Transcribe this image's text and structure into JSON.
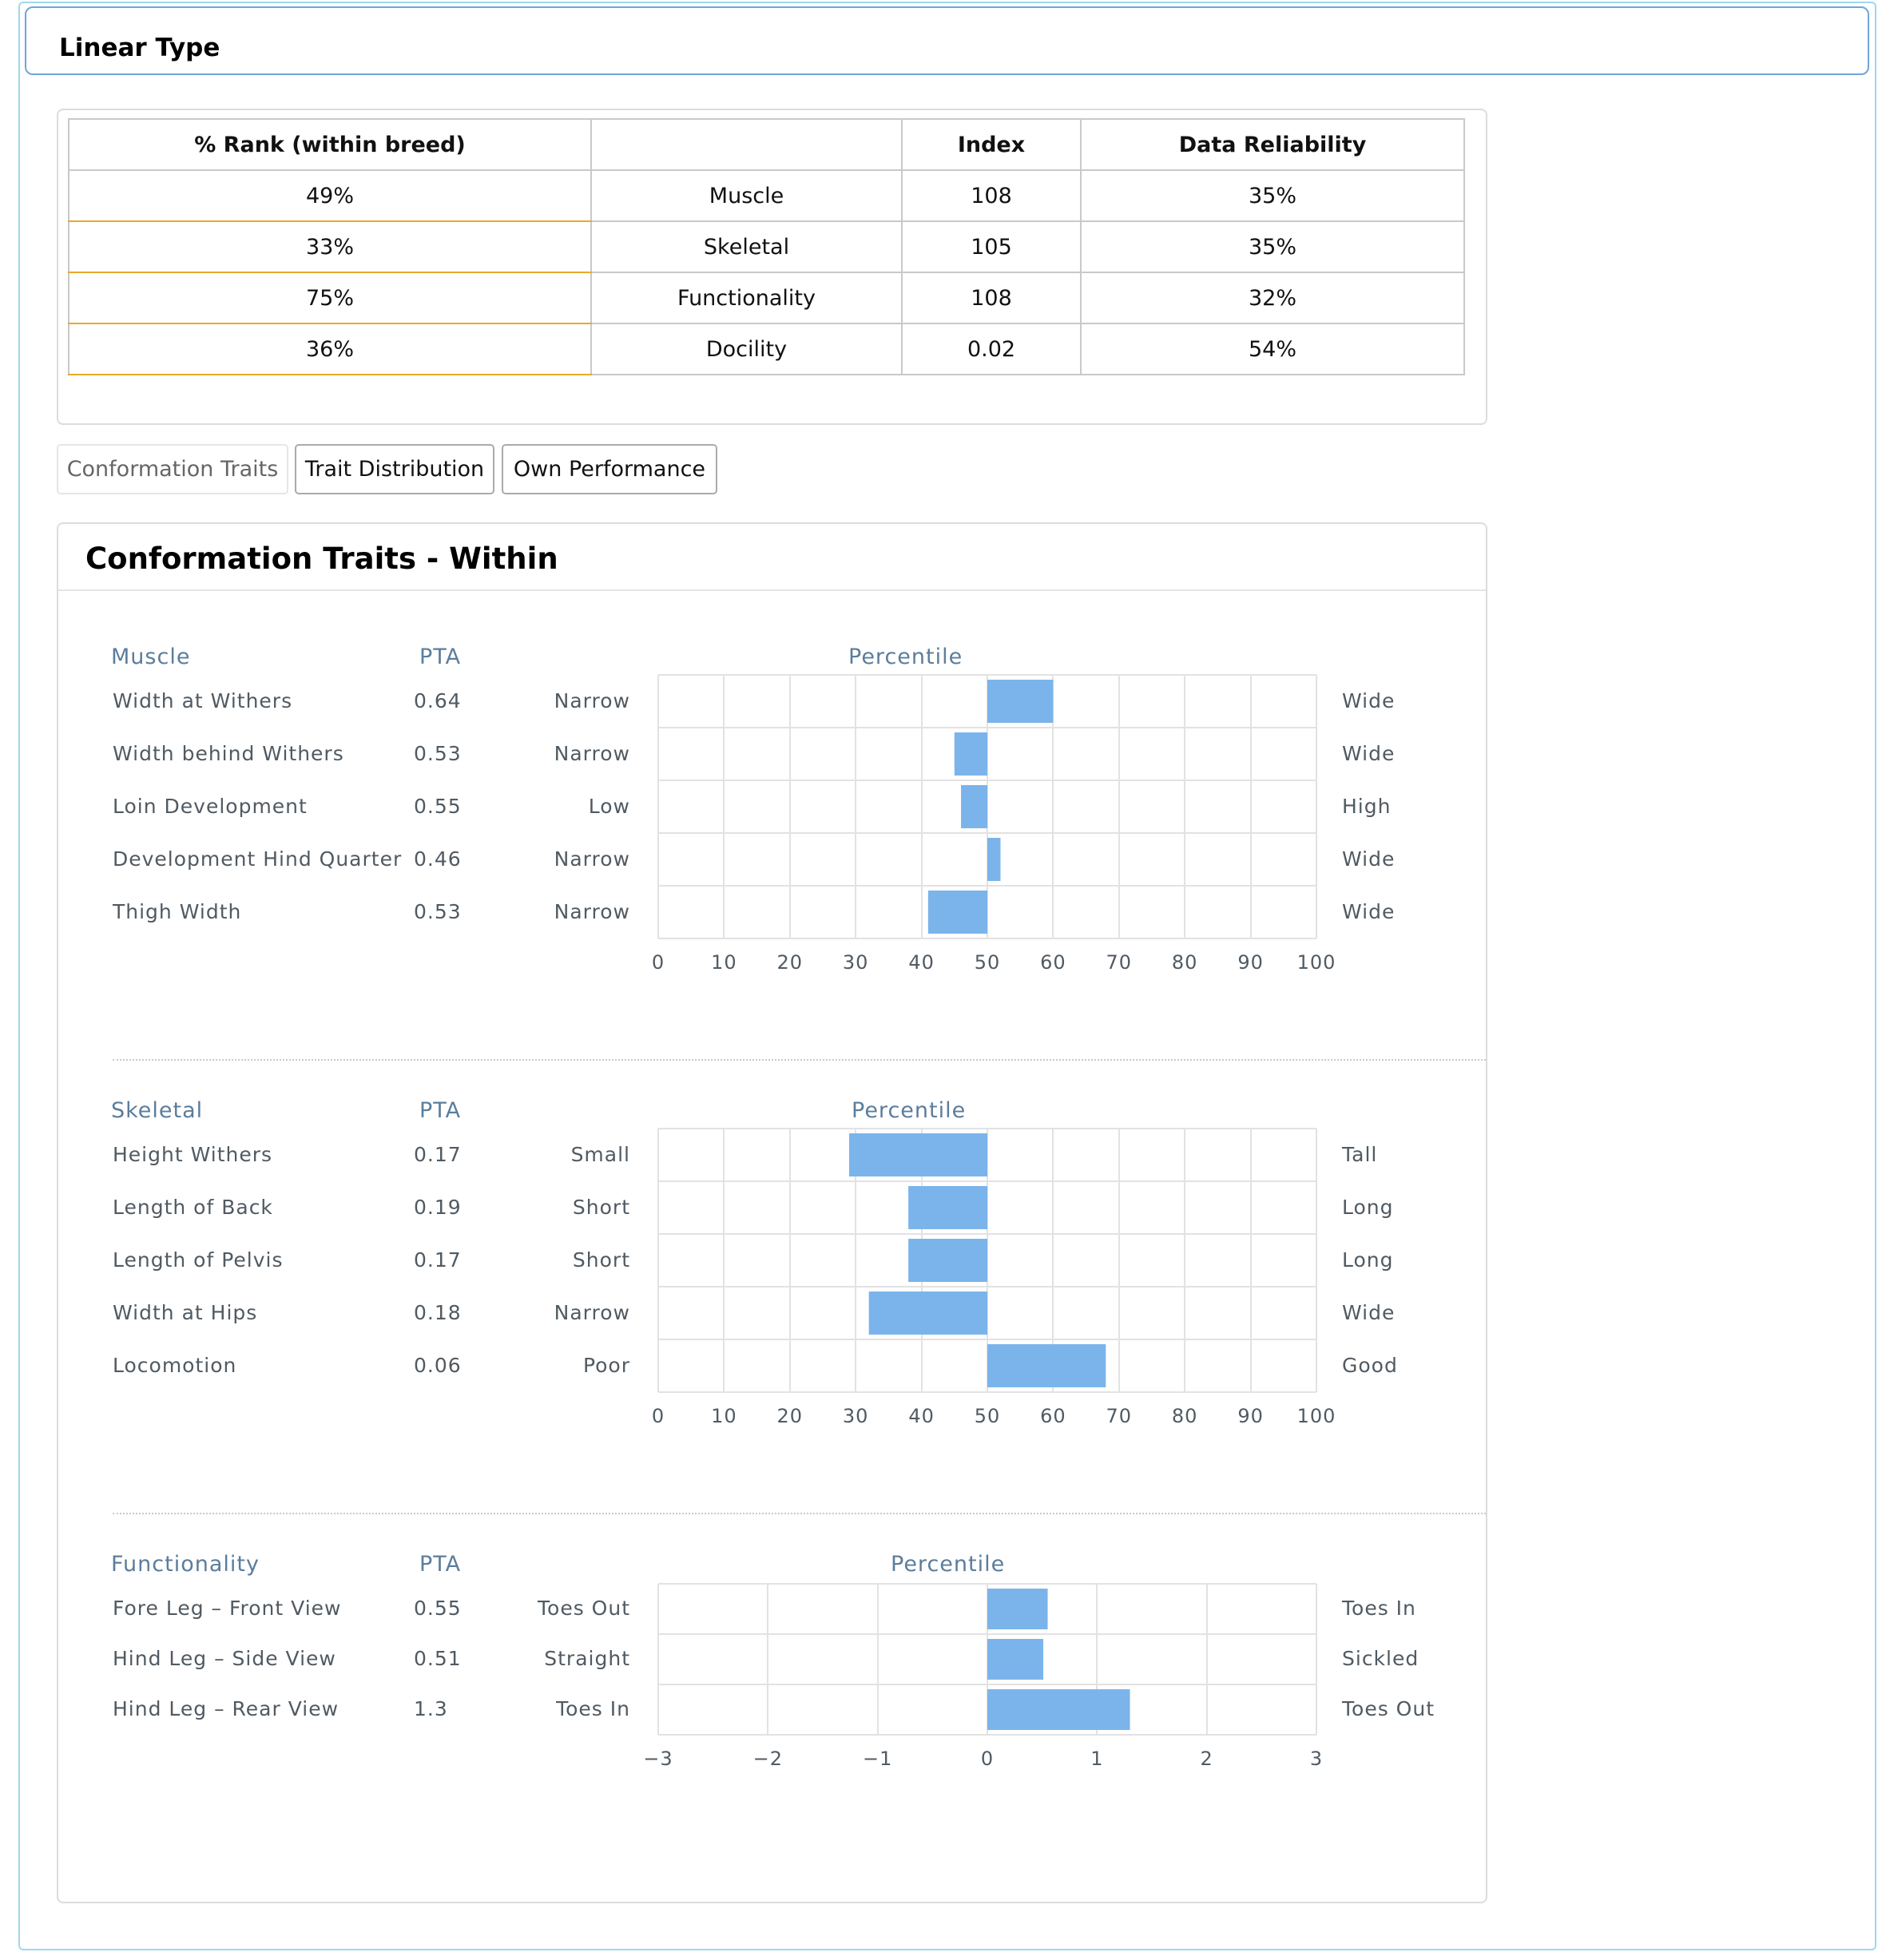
{
  "panel": {
    "title": "Linear Type"
  },
  "summary": {
    "headers": [
      "% Rank (within breed)",
      "",
      "Index",
      "Data Reliability"
    ],
    "rows": [
      {
        "rank": "49%",
        "trait": "Muscle",
        "index": "108",
        "reliability": "35%"
      },
      {
        "rank": "33%",
        "trait": "Skeletal",
        "index": "105",
        "reliability": "35%"
      },
      {
        "rank": "75%",
        "trait": "Functionality",
        "index": "108",
        "reliability": "32%"
      },
      {
        "rank": "36%",
        "trait": "Docility",
        "index": "0.02",
        "reliability": "54%"
      }
    ]
  },
  "tabs": [
    "Conformation Traits",
    "Trait Distribution",
    "Own Performance"
  ],
  "traits_panel": {
    "title": "Conformation Traits - Within"
  },
  "colors": {
    "bar": "#7bb4eb",
    "grid": "#e2e2e2",
    "heading": "#5b7d9c",
    "label": "#505a62",
    "rank_underline": "#e8a92a"
  },
  "chart_data": [
    {
      "type": "bar",
      "orientation": "horizontal",
      "section": "Muscle",
      "pta_header": "PTA",
      "chart_title": "Percentile",
      "xlim": [
        0,
        100
      ],
      "baseline": 50,
      "ticks": [
        "0",
        "10",
        "20",
        "30",
        "40",
        "50",
        "60",
        "70",
        "80",
        "90",
        "100"
      ],
      "traits": [
        {
          "name": "Width at Withers",
          "pta": "0.64",
          "low": "Narrow",
          "high": "Wide",
          "value": 60
        },
        {
          "name": "Width behind Withers",
          "pta": "0.53",
          "low": "Narrow",
          "high": "Wide",
          "value": 45
        },
        {
          "name": "Loin Development",
          "pta": "0.55",
          "low": "Low",
          "high": "High",
          "value": 46
        },
        {
          "name": "Development Hind Quarter",
          "pta": "0.46",
          "low": "Narrow",
          "high": "Wide",
          "value": 52
        },
        {
          "name": "Thigh Width",
          "pta": "0.53",
          "low": "Narrow",
          "high": "Wide",
          "value": 41
        }
      ]
    },
    {
      "type": "bar",
      "orientation": "horizontal",
      "section": "Skeletal",
      "pta_header": "PTA",
      "chart_title": "Percentile",
      "xlim": [
        0,
        100
      ],
      "baseline": 50,
      "ticks": [
        "0",
        "10",
        "20",
        "30",
        "40",
        "50",
        "60",
        "70",
        "80",
        "90",
        "100"
      ],
      "traits": [
        {
          "name": "Height Withers",
          "pta": "0.17",
          "low": "Small",
          "high": "Tall",
          "value": 29
        },
        {
          "name": "Length of Back",
          "pta": "0.19",
          "low": "Short",
          "high": "Long",
          "value": 38
        },
        {
          "name": "Length of Pelvis",
          "pta": "0.17",
          "low": "Short",
          "high": "Long",
          "value": 38
        },
        {
          "name": "Width at Hips",
          "pta": "0.18",
          "low": "Narrow",
          "high": "Wide",
          "value": 32
        },
        {
          "name": "Locomotion",
          "pta": "0.06",
          "low": "Poor",
          "high": "Good",
          "value": 68
        }
      ]
    },
    {
      "type": "bar",
      "orientation": "horizontal",
      "section": "Functionality",
      "pta_header": "PTA",
      "chart_title": "Percentile",
      "xlim": [
        -3,
        3
      ],
      "baseline": 0,
      "ticks": [
        "−3",
        "−2",
        "−1",
        "0",
        "1",
        "2",
        "3"
      ],
      "traits": [
        {
          "name": "Fore Leg – Front View",
          "pta": "0.55",
          "low": "Toes Out",
          "high": "Toes In",
          "value": 0.55
        },
        {
          "name": "Hind Leg – Side View",
          "pta": "0.51",
          "low": "Straight",
          "high": "Sickled",
          "value": 0.51
        },
        {
          "name": "Hind Leg – Rear View",
          "pta": "1.3",
          "low": "Toes In",
          "high": "Toes Out",
          "value": 1.3
        }
      ]
    }
  ]
}
